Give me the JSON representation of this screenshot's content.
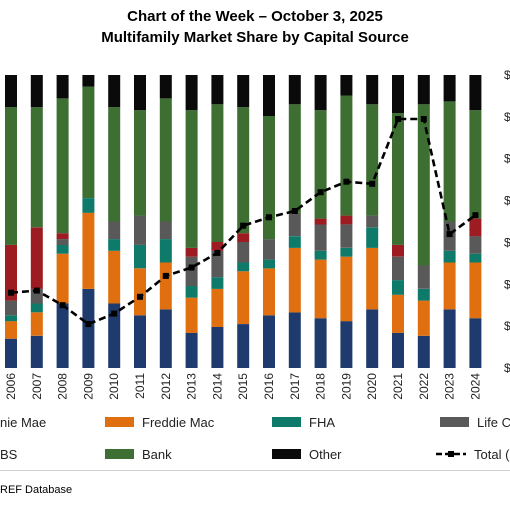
{
  "title": "Chart of the Week – October 3, 2025",
  "subtitle": "Multifamily Market Share by Capital Source",
  "source_text": "REF Database",
  "colors": {
    "fannie": "#1f3b6e",
    "freddie": "#e0700f",
    "fha": "#0d7a6a",
    "life": "#595959",
    "cmbs": "#9c1c22",
    "bank": "#3d6e32",
    "other": "#0a0a0a",
    "total": "#000000"
  },
  "chart_data": {
    "type": "bar",
    "stacked": true,
    "categories": [
      "2006",
      "2007",
      "2008",
      "2009",
      "2010",
      "2011",
      "2012",
      "2013",
      "2014",
      "2015",
      "2016",
      "2017",
      "2018",
      "2019",
      "2020",
      "2021",
      "2022",
      "2023",
      "2024"
    ],
    "series": [
      {
        "name": "nie Mae",
        "key": "fannie",
        "values": [
          10,
          11,
          22,
          27,
          22,
          18,
          20,
          12,
          14,
          15,
          18,
          19,
          17,
          16,
          20,
          12,
          11,
          20,
          17
        ]
      },
      {
        "name": "Freddie Mac",
        "key": "freddie",
        "values": [
          6,
          8,
          17,
          26,
          18,
          16,
          16,
          12,
          13,
          18,
          16,
          22,
          20,
          22,
          21,
          13,
          12,
          16,
          19
        ]
      },
      {
        "name": "FHA",
        "key": "fha",
        "values": [
          2,
          3,
          3,
          5,
          4,
          8,
          8,
          4,
          4,
          3,
          3,
          4,
          3,
          3,
          7,
          5,
          4,
          4,
          3
        ]
      },
      {
        "name": "Life C",
        "key": "life",
        "values": [
          5,
          5,
          2,
          0,
          6,
          10,
          6,
          10,
          9,
          7,
          7,
          8,
          9,
          8,
          4,
          8,
          8,
          10,
          6
        ]
      },
      {
        "name": "BS",
        "key": "cmbs",
        "values": [
          19,
          21,
          2,
          0,
          0,
          0,
          0,
          3,
          3,
          3,
          0,
          0,
          2,
          3,
          0,
          4,
          0,
          0,
          6
        ]
      },
      {
        "name": "Bank",
        "key": "bank",
        "values": [
          47,
          41,
          46,
          38,
          39,
          36,
          42,
          47,
          47,
          43,
          42,
          37,
          37,
          41,
          38,
          45,
          55,
          41,
          37
        ]
      },
      {
        "name": "Other",
        "key": "other",
        "values": [
          11,
          11,
          8,
          4,
          11,
          12,
          8,
          12,
          10,
          11,
          14,
          10,
          12,
          7,
          10,
          13,
          10,
          9,
          12
        ]
      }
    ],
    "total_series": {
      "name": "Total (",
      "values": [
        36,
        37,
        30,
        21,
        26,
        34,
        44,
        48,
        55,
        68,
        72,
        75,
        84,
        89,
        88,
        119,
        119,
        64,
        73
      ]
    },
    "legend": [
      "nie Mae",
      "Freddie Mac",
      "FHA",
      "Life C",
      "BS",
      "Bank",
      "Other",
      "Total ("
    ],
    "legend_position": "bottom",
    "gridlines": false
  }
}
